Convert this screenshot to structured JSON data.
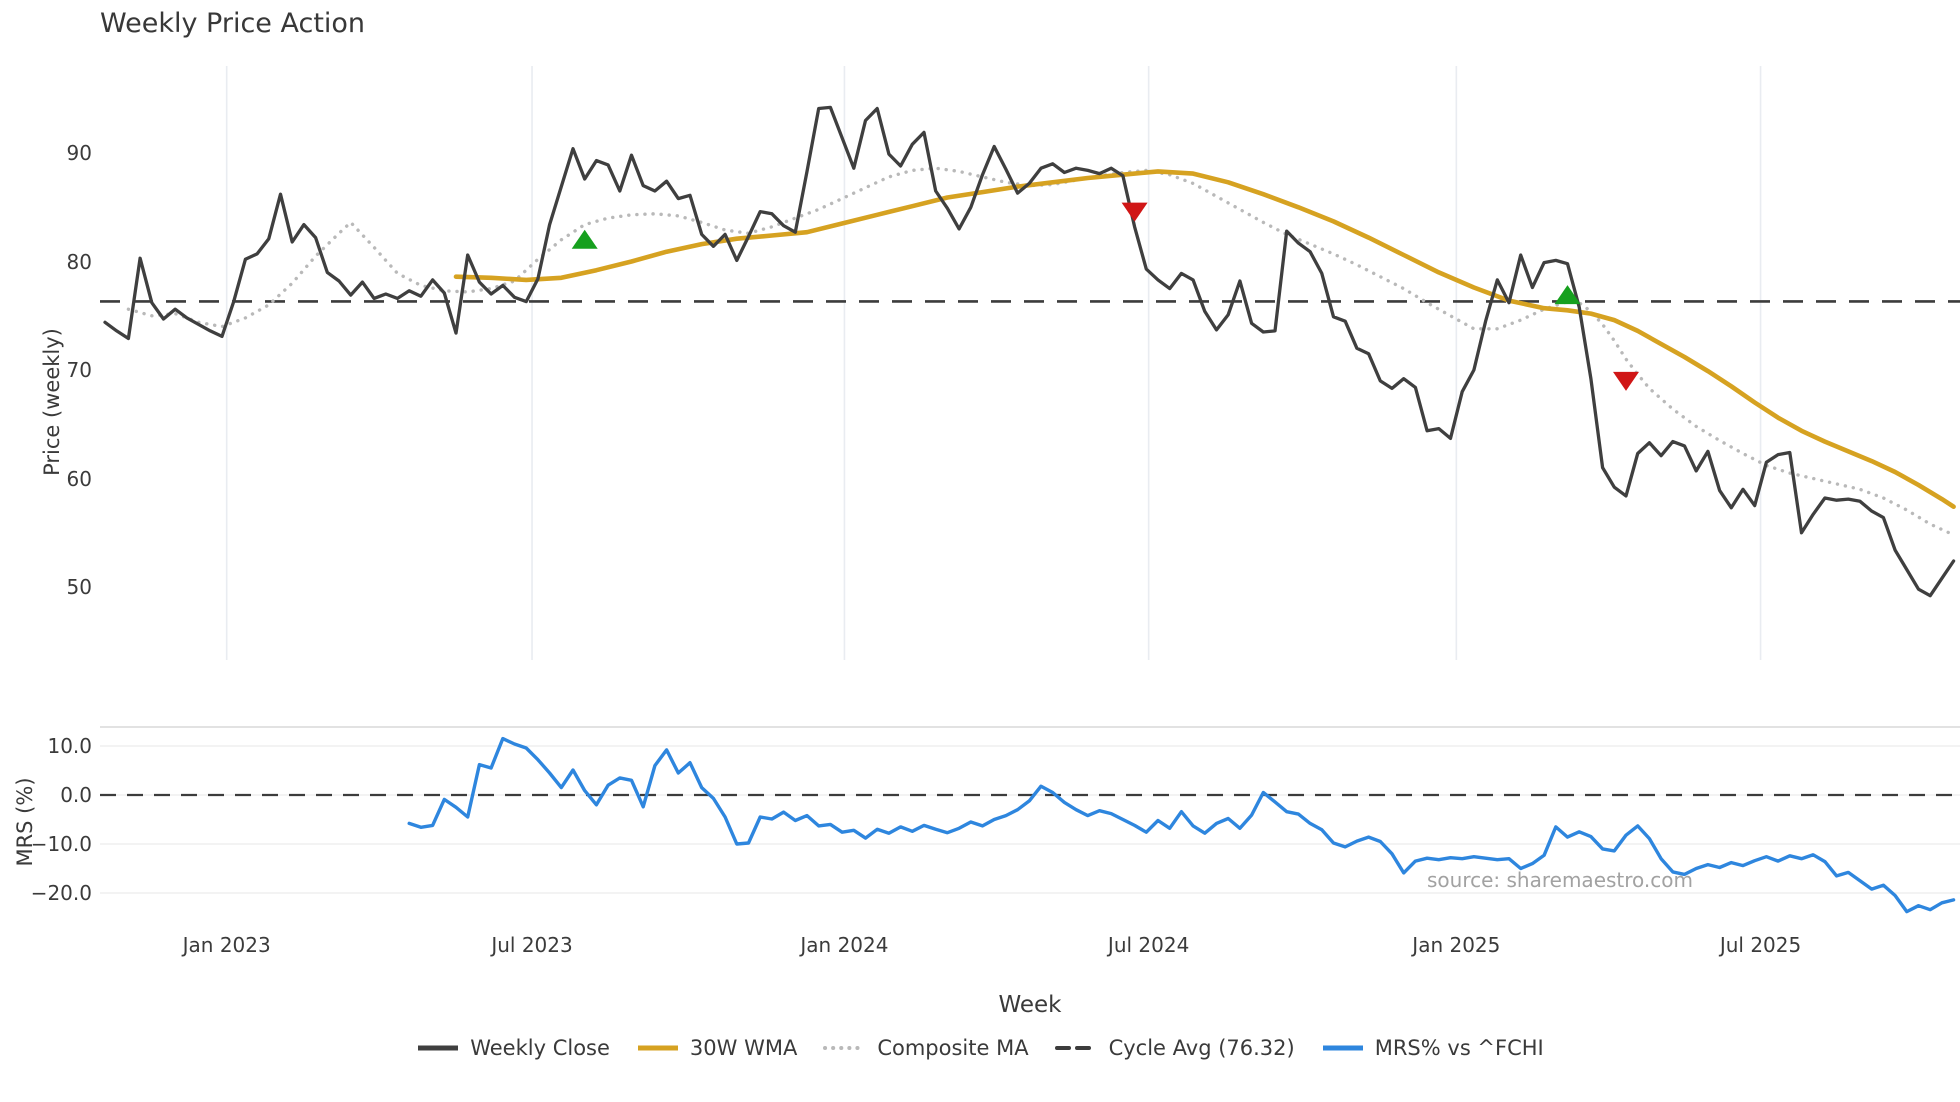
{
  "watermark": "source: sharemaestro.com",
  "colors": {
    "close": "#3f3f3f",
    "wma": "#d6a221",
    "composite": "#b9b9b9",
    "cycle_avg": "#3c3c3c",
    "mrs": "#2e86de",
    "buy_marker": "#16a01e",
    "sell_marker": "#d01616",
    "grid_vertical": "#e9ecf1",
    "grid_horizontal": "#efefef",
    "panel_border": "#d8d8d8"
  },
  "chart_data": {
    "type": "line",
    "title": "Weekly Price Action",
    "xlabel": "Week",
    "ylabel_price": "Price (weekly)",
    "ylabel_mrs": "MRS (%)",
    "legend_position": "bottom-center",
    "grid": {
      "main_panel": "vertical-only",
      "mrs_panel": "horizontal-only"
    },
    "x_ticks": [
      {
        "week": 10.4,
        "label": "Jan 2023"
      },
      {
        "week": 36.5,
        "label": "Jul 2023"
      },
      {
        "week": 63.2,
        "label": "Jan 2024"
      },
      {
        "week": 89.2,
        "label": "Jul 2024"
      },
      {
        "week": 115.5,
        "label": "Jan 2025"
      },
      {
        "week": 141.5,
        "label": "Jul 2025"
      }
    ],
    "price_yticks": [
      {
        "v": 90,
        "label": "90"
      },
      {
        "v": 80,
        "label": "80"
      },
      {
        "v": 70,
        "label": "70"
      },
      {
        "v": 60,
        "label": "60"
      },
      {
        "v": 50,
        "label": "50"
      }
    ],
    "price_ylim": [
      43.3,
      98.0
    ],
    "mrs_yticks": [
      {
        "v": 10,
        "label": "10.0"
      },
      {
        "v": 0,
        "label": "0.0"
      },
      {
        "v": -10,
        "label": "−10.0"
      },
      {
        "v": -20,
        "label": "−20.0"
      }
    ],
    "mrs_ylim": [
      -24.5,
      13.9
    ],
    "cycle_avg": 76.32,
    "weekly_close": {
      "name": "Weekly Close",
      "start_week": 0,
      "values": [
        74.4,
        73.6,
        72.9,
        80.3,
        76.2,
        74.7,
        75.6,
        74.8,
        74.2,
        73.6,
        73.1,
        76.3,
        80.2,
        80.7,
        82.1,
        86.2,
        81.8,
        83.4,
        82.2,
        79.0,
        78.2,
        76.9,
        78.1,
        76.6,
        77.0,
        76.6,
        77.3,
        76.8,
        78.3,
        77.1,
        73.4,
        80.6,
        78.1,
        77.0,
        77.8,
        76.7,
        76.3,
        78.4,
        83.4,
        86.9,
        90.4,
        87.6,
        89.3,
        88.9,
        86.5,
        89.8,
        87.0,
        86.5,
        87.4,
        85.8,
        86.1,
        82.5,
        81.4,
        82.5,
        80.1,
        82.3,
        84.6,
        84.4,
        83.3,
        82.7,
        88.3,
        94.1,
        94.2,
        91.4,
        88.6,
        93.0,
        94.1,
        89.9,
        88.8,
        90.8,
        91.9,
        86.5,
        84.9,
        83.0,
        85.0,
        88.0,
        90.6,
        88.5,
        86.3,
        87.2,
        88.6,
        89.0,
        88.2,
        88.6,
        88.4,
        88.1,
        88.6,
        87.9,
        83.2,
        79.3,
        78.3,
        77.5,
        78.9,
        78.3,
        75.4,
        73.7,
        75.1,
        78.2,
        74.3,
        73.5,
        73.6,
        82.8,
        81.7,
        80.9,
        78.9,
        74.9,
        74.5,
        72.0,
        71.5,
        69.0,
        68.3,
        69.2,
        68.4,
        64.4,
        64.6,
        63.7,
        68.0,
        70.0,
        74.5,
        78.3,
        76.2,
        80.6,
        77.6,
        79.9,
        80.1,
        79.8,
        75.8,
        69.2,
        61.0,
        59.2,
        58.4,
        62.3,
        63.3,
        62.1,
        63.4,
        63.0,
        60.7,
        62.5,
        58.9,
        57.3,
        59.0,
        57.5,
        61.5,
        62.2,
        62.4,
        55.0,
        56.7,
        58.2,
        58.0,
        58.1,
        57.9,
        57.0,
        56.4,
        53.4,
        51.6,
        49.8,
        49.2,
        50.8,
        52.4
      ]
    },
    "wma_30w": {
      "name": "30W WMA",
      "points": [
        [
          30,
          78.6
        ],
        [
          33,
          78.5
        ],
        [
          36,
          78.3
        ],
        [
          39,
          78.5
        ],
        [
          42,
          79.2
        ],
        [
          45,
          80.0
        ],
        [
          48,
          80.9
        ],
        [
          51,
          81.6
        ],
        [
          54,
          82.1
        ],
        [
          57,
          82.4
        ],
        [
          60,
          82.7
        ],
        [
          63,
          83.5
        ],
        [
          66,
          84.3
        ],
        [
          69,
          85.1
        ],
        [
          72,
          85.9
        ],
        [
          75,
          86.4
        ],
        [
          78,
          86.9
        ],
        [
          81,
          87.3
        ],
        [
          84,
          87.7
        ],
        [
          87,
          88.0
        ],
        [
          90,
          88.3
        ],
        [
          93,
          88.1
        ],
        [
          96,
          87.3
        ],
        [
          99,
          86.2
        ],
        [
          102,
          85.0
        ],
        [
          105,
          83.7
        ],
        [
          108,
          82.2
        ],
        [
          111,
          80.6
        ],
        [
          114,
          79.0
        ],
        [
          117,
          77.6
        ],
        [
          120,
          76.4
        ],
        [
          123,
          75.7
        ],
        [
          125,
          75.5
        ],
        [
          127,
          75.2
        ],
        [
          129,
          74.6
        ],
        [
          131,
          73.6
        ],
        [
          133,
          72.4
        ],
        [
          135,
          71.2
        ],
        [
          137,
          69.9
        ],
        [
          139,
          68.5
        ],
        [
          141,
          67.0
        ],
        [
          143,
          65.6
        ],
        [
          145,
          64.4
        ],
        [
          147,
          63.4
        ],
        [
          149,
          62.5
        ],
        [
          151,
          61.6
        ],
        [
          153,
          60.6
        ],
        [
          155,
          59.4
        ],
        [
          157,
          58.1
        ],
        [
          158,
          57.4
        ]
      ]
    },
    "composite_ma": {
      "name": "Composite MA",
      "points": [
        [
          2,
          75.6
        ],
        [
          4,
          75.0
        ],
        [
          6,
          75.2
        ],
        [
          8,
          74.4
        ],
        [
          10,
          74.0
        ],
        [
          12,
          74.8
        ],
        [
          14,
          76.0
        ],
        [
          16,
          78.0
        ],
        [
          18,
          80.5
        ],
        [
          20,
          82.6
        ],
        [
          21,
          83.6
        ],
        [
          23,
          81.3
        ],
        [
          25,
          78.9
        ],
        [
          27,
          77.8
        ],
        [
          29,
          77.3
        ],
        [
          31,
          77.2
        ],
        [
          33,
          77.5
        ],
        [
          35,
          78.2
        ],
        [
          37,
          80.2
        ],
        [
          39,
          82.0
        ],
        [
          41,
          83.4
        ],
        [
          43,
          84.0
        ],
        [
          45,
          84.3
        ],
        [
          47,
          84.4
        ],
        [
          49,
          84.2
        ],
        [
          51,
          83.6
        ],
        [
          53,
          82.9
        ],
        [
          55,
          82.6
        ],
        [
          57,
          83.2
        ],
        [
          59,
          84.0
        ],
        [
          61,
          84.8
        ],
        [
          63,
          85.8
        ],
        [
          65,
          86.8
        ],
        [
          67,
          87.8
        ],
        [
          69,
          88.4
        ],
        [
          71,
          88.6
        ],
        [
          73,
          88.3
        ],
        [
          75,
          87.8
        ],
        [
          77,
          87.3
        ],
        [
          79,
          87.0
        ],
        [
          81,
          87.1
        ],
        [
          83,
          87.5
        ],
        [
          85,
          87.9
        ],
        [
          87,
          88.2
        ],
        [
          89,
          88.4
        ],
        [
          91,
          88.0
        ],
        [
          93,
          87.2
        ],
        [
          95,
          86.0
        ],
        [
          97,
          84.8
        ],
        [
          99,
          83.6
        ],
        [
          101,
          82.5
        ],
        [
          103,
          81.6
        ],
        [
          105,
          80.7
        ],
        [
          107,
          79.7
        ],
        [
          109,
          78.6
        ],
        [
          111,
          77.5
        ],
        [
          113,
          76.2
        ],
        [
          115,
          75.0
        ],
        [
          117,
          73.8
        ],
        [
          119,
          73.8
        ],
        [
          121,
          74.6
        ],
        [
          123,
          75.6
        ],
        [
          125,
          76.3
        ],
        [
          126,
          76.2
        ],
        [
          127,
          75.4
        ],
        [
          128,
          74.2
        ],
        [
          129,
          72.7
        ],
        [
          130,
          71.0
        ],
        [
          131,
          69.6
        ],
        [
          132,
          68.3
        ],
        [
          134,
          66.4
        ],
        [
          136,
          64.8
        ],
        [
          138,
          63.5
        ],
        [
          140,
          62.3
        ],
        [
          142,
          61.2
        ],
        [
          144,
          60.5
        ],
        [
          146,
          60.0
        ],
        [
          148,
          59.5
        ],
        [
          150,
          59.0
        ],
        [
          152,
          58.2
        ],
        [
          154,
          57.1
        ],
        [
          156,
          55.8
        ],
        [
          158,
          54.8
        ]
      ]
    },
    "mrs_series": {
      "name": "MRS% vs ^FCHI",
      "panel": "mrs",
      "start_week": 26,
      "values": [
        -5.8,
        -6.6,
        -6.2,
        -0.9,
        -2.5,
        -4.5,
        6.2,
        5.5,
        11.5,
        10.4,
        9.6,
        7.2,
        4.5,
        1.5,
        5.1,
        0.9,
        -2.0,
        2.0,
        3.5,
        3.0,
        -2.4,
        6.0,
        9.2,
        4.5,
        6.6,
        1.5,
        -0.7,
        -4.5,
        -10.0,
        -9.8,
        -4.5,
        -4.9,
        -3.5,
        -5.2,
        -4.2,
        -6.3,
        -6.0,
        -7.6,
        -7.2,
        -8.8,
        -7.0,
        -7.8,
        -6.5,
        -7.4,
        -6.2,
        -7.0,
        -7.7,
        -6.8,
        -5.5,
        -6.3,
        -5.0,
        -4.2,
        -3.0,
        -1.2,
        1.8,
        0.5,
        -1.5,
        -3.0,
        -4.2,
        -3.2,
        -3.8,
        -5.0,
        -6.2,
        -7.6,
        -5.2,
        -6.8,
        -3.4,
        -6.3,
        -7.8,
        -5.8,
        -4.8,
        -6.8,
        -4.1,
        0.5,
        -1.4,
        -3.4,
        -3.9,
        -5.8,
        -7.1,
        -9.8,
        -10.6,
        -9.4,
        -8.6,
        -9.5,
        -12.0,
        -15.9,
        -13.5,
        -12.9,
        -13.2,
        -12.8,
        -13.0,
        -12.6,
        -12.9,
        -13.2,
        -13.0,
        -15.0,
        -14.0,
        -12.3,
        -6.5,
        -8.6,
        -7.5,
        -8.5,
        -11.0,
        -11.4,
        -8.2,
        -6.3,
        -8.9,
        -13.0,
        -15.7,
        -16.2,
        -15.0,
        -14.2,
        -14.8,
        -13.8,
        -14.4,
        -13.4,
        -12.6,
        -13.5,
        -12.4,
        -13.0,
        -12.2,
        -13.6,
        -16.5,
        -15.8,
        -17.5,
        -19.2,
        -18.4,
        -20.5,
        -23.8,
        -22.6,
        -23.4,
        -22.0,
        -21.4
      ]
    },
    "markers": {
      "buy": [
        {
          "week": 41,
          "value": 82.0
        },
        {
          "week": 125,
          "value": 76.9
        }
      ],
      "sell": [
        {
          "week": 88,
          "value": 84.6
        },
        {
          "week": 130,
          "value": 69.0
        }
      ]
    },
    "legend": [
      {
        "label": "Weekly Close",
        "style": "solid",
        "color_key": "close"
      },
      {
        "label": "30W WMA",
        "style": "solid",
        "color_key": "wma"
      },
      {
        "label": "Composite MA",
        "style": "dotted",
        "color_key": "composite"
      },
      {
        "label": "Cycle Avg (76.32)",
        "style": "dashed",
        "color_key": "cycle_avg"
      },
      {
        "label": "MRS% vs ^FCHI",
        "style": "solid",
        "color_key": "mrs"
      }
    ]
  }
}
